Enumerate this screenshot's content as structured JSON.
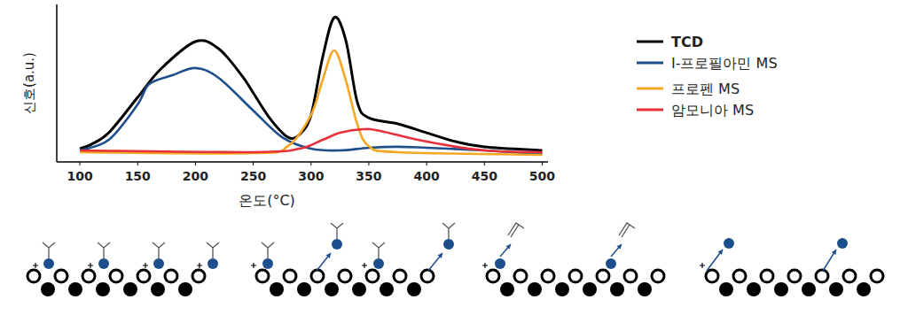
{
  "chart_data": {
    "type": "line",
    "y_label": "신호(a.u.)",
    "x_label": "온도(°C)",
    "xlim": [
      80,
      505
    ],
    "xticks": [
      100,
      150,
      200,
      250,
      300,
      350,
      400,
      450,
      500
    ],
    "ylim": [
      0,
      100
    ],
    "tick_labels": "x",
    "grid": false,
    "legend": "right",
    "series": [
      {
        "name": "TCD",
        "color": "#000000",
        "x": [
          100,
          110,
          125,
          150,
          170,
          200,
          220,
          240,
          250,
          265,
          280,
          290,
          300,
          310,
          320,
          330,
          340,
          350,
          375,
          400,
          425,
          450,
          500
        ],
        "values": [
          8.4,
          11.2,
          18.5,
          41,
          59,
          76.4,
          71.9,
          55,
          43.8,
          27,
          15.7,
          17.4,
          29.8,
          66.3,
          91.6,
          77.5,
          38,
          28,
          24.2,
          18.5,
          12.9,
          9.6,
          7.3
        ]
      },
      {
        "name": "I-프로필아민 MS",
        "color": "#1f4e8c",
        "x": [
          100,
          125,
          150,
          160,
          180,
          200,
          220,
          250,
          275,
          300,
          325,
          350,
          375,
          400,
          450,
          500
        ],
        "values": [
          7.3,
          14,
          36.5,
          49.4,
          55,
          59.6,
          53.4,
          32.6,
          15.7,
          8.4,
          7.3,
          9,
          9.6,
          9,
          7.3,
          5
        ]
      },
      {
        "name": "프로펜 MS",
        "color": "#f5a623",
        "x": [
          100,
          250,
          280,
          300,
          310,
          320,
          330,
          340,
          350,
          375,
          500
        ],
        "values": [
          6.2,
          5.6,
          10,
          29.8,
          52,
          70.8,
          52,
          24,
          10,
          6.2,
          4.5
        ]
      },
      {
        "name": "암모니아 MS",
        "color": "#e8303a",
        "x": [
          100,
          250,
          290,
          310,
          325,
          345,
          360,
          400,
          450,
          500
        ],
        "values": [
          7.3,
          6.2,
          8.4,
          14,
          18.5,
          20.8,
          19.7,
          12.9,
          7.3,
          6.2
        ]
      }
    ]
  }
}
